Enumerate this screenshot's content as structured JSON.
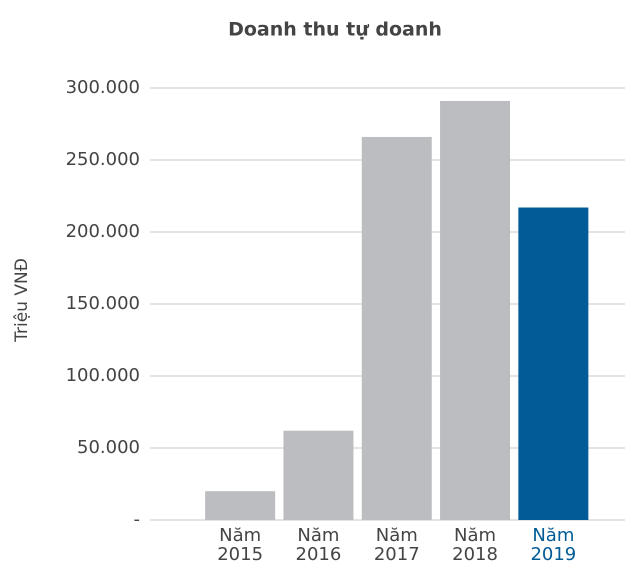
{
  "chart_data": {
    "type": "bar",
    "title": "Doanh thu tự doanh",
    "y_label": "Triệu VNĐ",
    "categories": [
      "Năm 2015",
      "Năm 2016",
      "Năm 2017",
      "Năm 2018",
      "Năm 2019"
    ],
    "values": [
      20000,
      62000,
      266000,
      291000,
      217000
    ],
    "colors": [
      "#bcbdc0",
      "#bcbdc0",
      "#bcbdc0",
      "#bcbdc0",
      "#005b96"
    ],
    "category_label_colors": [
      "#444444",
      "#444444",
      "#444444",
      "#444444",
      "#005b96"
    ],
    "ylim": [
      0,
      300000
    ],
    "yticks": [
      {
        "value": 0,
        "label": "-"
      },
      {
        "value": 50000,
        "label": "50.000"
      },
      {
        "value": 100000,
        "label": "100.000"
      },
      {
        "value": 150000,
        "label": "150.000"
      },
      {
        "value": 200000,
        "label": "200.000"
      },
      {
        "value": 250000,
        "label": "250.000"
      },
      {
        "value": 300000,
        "label": "300.000"
      }
    ],
    "grid": true
  }
}
